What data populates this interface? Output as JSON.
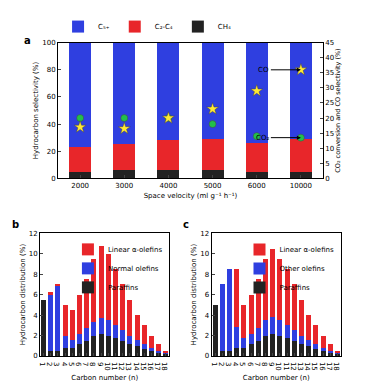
{
  "chart_data": [
    {
      "panel_label": "a",
      "type": "bar",
      "stacked": true,
      "grid": false,
      "legend": "top left",
      "x_label": "Space velocity (ml g⁻¹ h⁻¹)",
      "y_label": "Hydrocarbon selectivity (%)",
      "y2_label": "CO₂ conversion and CO selectivity (%)",
      "categories": [
        "2000",
        "3000",
        "4000",
        "5000",
        "6000",
        "10000"
      ],
      "ylim": [
        0,
        100
      ],
      "yticks": [
        0,
        20,
        40,
        60,
        80,
        100
      ],
      "y2lim": [
        0,
        45
      ],
      "y2ticks": [
        0,
        5,
        10,
        15,
        20,
        25,
        30,
        35,
        40,
        45
      ],
      "series": [
        {
          "name": "CH₄",
          "color": "#222222",
          "values": [
            5,
            6,
            6,
            6,
            5,
            5
          ]
        },
        {
          "name": "C₂-C₄",
          "color": "#e8262a",
          "values": [
            18,
            19,
            22,
            23,
            21,
            24
          ]
        },
        {
          "name": "C₅₊",
          "color": "#2f3fe0",
          "values": [
            77,
            75,
            72,
            71,
            74,
            71
          ]
        },
        {
          "name": "CO₂",
          "type": "scatter",
          "axis": "y2",
          "marker": "circle",
          "color": "#22c04a",
          "values": [
            20,
            20,
            20,
            18,
            14,
            13.5
          ]
        },
        {
          "name": "CO",
          "type": "scatter",
          "axis": "y2",
          "marker": "star",
          "color": "#ffe933",
          "values": [
            17,
            16.5,
            20,
            23,
            29,
            36
          ]
        }
      ]
    },
    {
      "panel_label": "b",
      "type": "bar",
      "stacked": true,
      "grid": false,
      "legend": "top right",
      "x_label": "Carbon number (n)",
      "y_label": "Hydrocarbon distribution (%)",
      "x": [
        1,
        2,
        3,
        4,
        5,
        6,
        7,
        8,
        9,
        10,
        11,
        12,
        13,
        14,
        15,
        16,
        17,
        18
      ],
      "xlim": [
        0.5,
        18.5
      ],
      "xticks": [
        1,
        2,
        3,
        4,
        5,
        6,
        7,
        8,
        9,
        10,
        11,
        12,
        13,
        14,
        15,
        16,
        17,
        18
      ],
      "ylim": [
        0,
        12
      ],
      "yticks": [
        0,
        2,
        4,
        6,
        8,
        10,
        12
      ],
      "series": [
        {
          "name": "Paraffins",
          "color": "#222222",
          "values": [
            5.5,
            0.5,
            0.5,
            0.8,
            0.8,
            1.2,
            1.5,
            2,
            2.2,
            2,
            1.8,
            1.5,
            1.2,
            1,
            0.7,
            0.5,
            0.3,
            0.2
          ]
        },
        {
          "name": "Normal olefins",
          "color": "#2f3fe0",
          "values": [
            0,
            5.5,
            6.3,
            1.2,
            0.8,
            1,
            1.2,
            1.3,
            1.5,
            1.5,
            1.2,
            1,
            0.8,
            0.6,
            0.5,
            0.3,
            0.2,
            0.1
          ]
        },
        {
          "name": "Linear α-olefins",
          "color": "#e8262a",
          "values": [
            0,
            0.3,
            0.2,
            3,
            2.9,
            3.8,
            4.8,
            6.2,
            7.1,
            6.5,
            5.5,
            4.5,
            3.5,
            2.4,
            1.8,
            1.2,
            0.7,
            0.2
          ]
        }
      ]
    },
    {
      "panel_label": "c",
      "type": "bar",
      "stacked": true,
      "grid": false,
      "legend": "top right",
      "x_label": "Carbon number (n)",
      "y_label": "Hydrocarbon distribution (%)",
      "x": [
        1,
        2,
        3,
        4,
        5,
        6,
        7,
        8,
        9,
        10,
        11,
        12,
        13,
        14,
        15,
        16,
        17,
        18
      ],
      "xlim": [
        0.5,
        18.5
      ],
      "xticks": [
        1,
        2,
        3,
        4,
        5,
        6,
        7,
        8,
        9,
        10,
        11,
        12,
        13,
        14,
        15,
        16,
        17,
        18
      ],
      "ylim": [
        0,
        12
      ],
      "yticks": [
        0,
        2,
        4,
        6,
        8,
        10,
        12
      ],
      "series": [
        {
          "name": "Paraffins",
          "color": "#222222",
          "values": [
            5,
            0.5,
            0.5,
            0.8,
            0.8,
            1.2,
            1.5,
            2,
            2.2,
            2,
            1.8,
            1.5,
            1.2,
            1,
            0.7,
            0.5,
            0.3,
            0.2
          ]
        },
        {
          "name": "Other olefins",
          "color": "#2f3fe0",
          "values": [
            0,
            6.5,
            8,
            2,
            1,
            1,
            1.2,
            1.5,
            1.6,
            1.5,
            1.2,
            1,
            0.8,
            0.6,
            0.5,
            0.3,
            0.2,
            0.1
          ]
        },
        {
          "name": "Linear α-olefins",
          "color": "#e8262a",
          "values": [
            0,
            0,
            0,
            5.7,
            3.2,
            3.8,
            4.8,
            6,
            6.7,
            6,
            5.5,
            4.5,
            3.5,
            2.4,
            1.8,
            1.2,
            0.7,
            0.2
          ]
        }
      ]
    }
  ]
}
